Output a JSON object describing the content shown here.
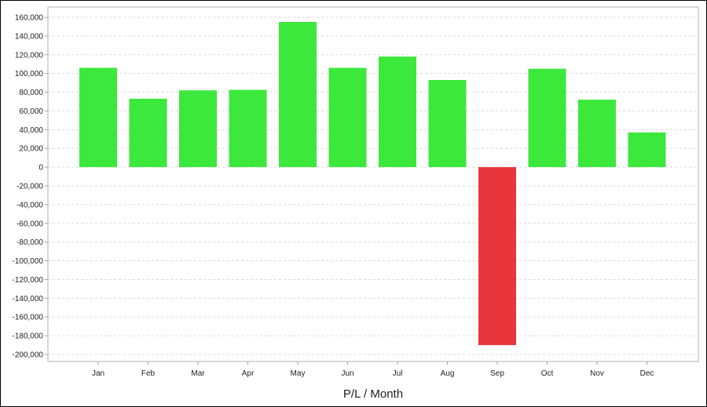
{
  "chart_data": {
    "type": "bar",
    "title": "",
    "xlabel": "P/L / Month",
    "ylabel": "",
    "categories": [
      "Jan",
      "Feb",
      "Mar",
      "Apr",
      "May",
      "Jun",
      "Jul",
      "Aug",
      "Sep",
      "Oct",
      "Nov",
      "Dec"
    ],
    "values": [
      106000,
      73000,
      82000,
      82500,
      155000,
      106000,
      118000,
      93000,
      -190000,
      105000,
      72000,
      37000
    ],
    "ylim": [
      -200000,
      160000
    ],
    "yticks": [
      160000,
      140000,
      120000,
      100000,
      80000,
      60000,
      40000,
      20000,
      0,
      -20000,
      -40000,
      -60000,
      -80000,
      -100000,
      -120000,
      -140000,
      -160000,
      -180000,
      -200000
    ],
    "ytick_labels": [
      "160,000",
      "140,000",
      "120,000",
      "100,000",
      "80,000",
      "60,000",
      "40,000",
      "20,000",
      "0",
      "-20,000",
      "-40,000",
      "-60,000",
      "-80,000",
      "-100,000",
      "-120,000",
      "-140,000",
      "-160,000",
      "-180,000",
      "-200,000"
    ],
    "grid": true,
    "legend": "none",
    "colors": {
      "positive": "#3ce83c",
      "negative": "#e8363c",
      "grid": "#d9d9d9",
      "axis": "#a0a0a0"
    }
  }
}
